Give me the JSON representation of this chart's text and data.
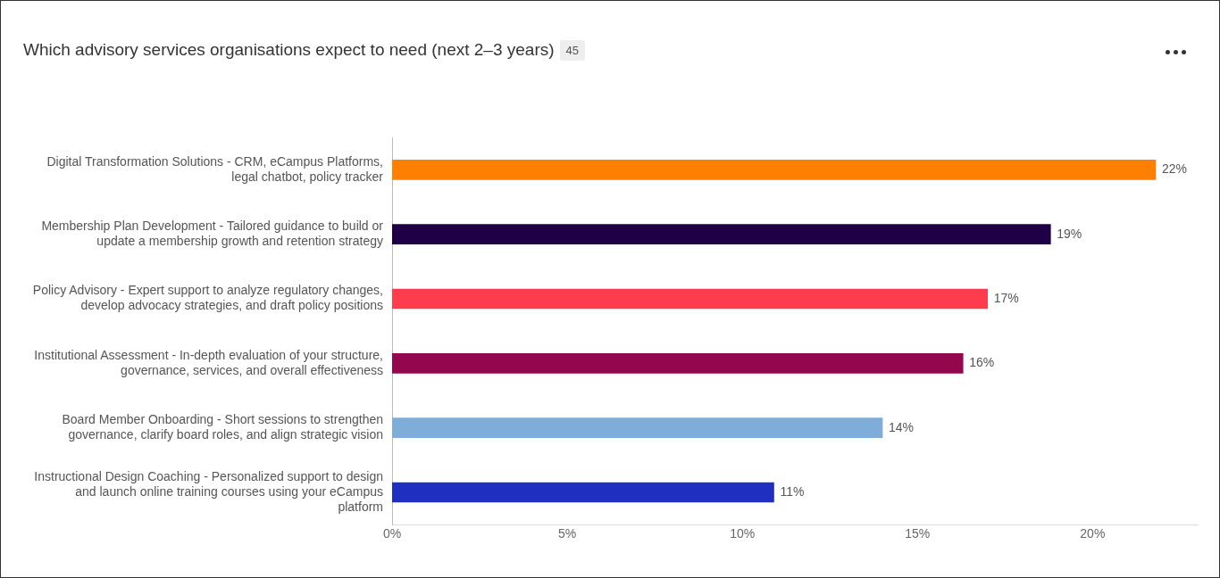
{
  "chart_data": {
    "type": "bar",
    "orientation": "horizontal",
    "title": "Which advisory services organisations expect to need (next 2–3 years)",
    "subtitle": "45",
    "categories": [
      "Digital Transformation Solutions - CRM, eCampus Platforms, legal chatbot, policy tracker",
      "Membership Plan Development - Tailored guidance to build or update a membership growth and retention strategy",
      "Policy Advisory - Expert support to analyze regulatory changes, develop advocacy strategies, and draft policy positions",
      "Institutional Assessment - In-depth evaluation of your structure, governance, services, and overall effectiveness",
      "Board Member Onboarding - Short sessions to strengthen governance, clarify board roles, and align strategic vision",
      "Instructional Design Coaching - Personalized support to design and launch online training courses using your eCampus platform"
    ],
    "values": [
      21.8,
      18.8,
      17.0,
      16.3,
      14.0,
      10.9
    ],
    "value_labels": [
      "22%",
      "19%",
      "17%",
      "16%",
      "14%",
      "11%"
    ],
    "colors": [
      "#ff7f00",
      "#1f0047",
      "#ff3b4e",
      "#94064e",
      "#7fadd9",
      "#1f2fbf"
    ],
    "xlim": [
      0,
      23
    ],
    "xticks": [
      {
        "value": 0,
        "label": "0%"
      },
      {
        "value": 5,
        "label": "5%"
      },
      {
        "value": 10,
        "label": "10%"
      },
      {
        "value": 15,
        "label": "15%"
      },
      {
        "value": 20,
        "label": "20%"
      }
    ],
    "grid": false
  }
}
